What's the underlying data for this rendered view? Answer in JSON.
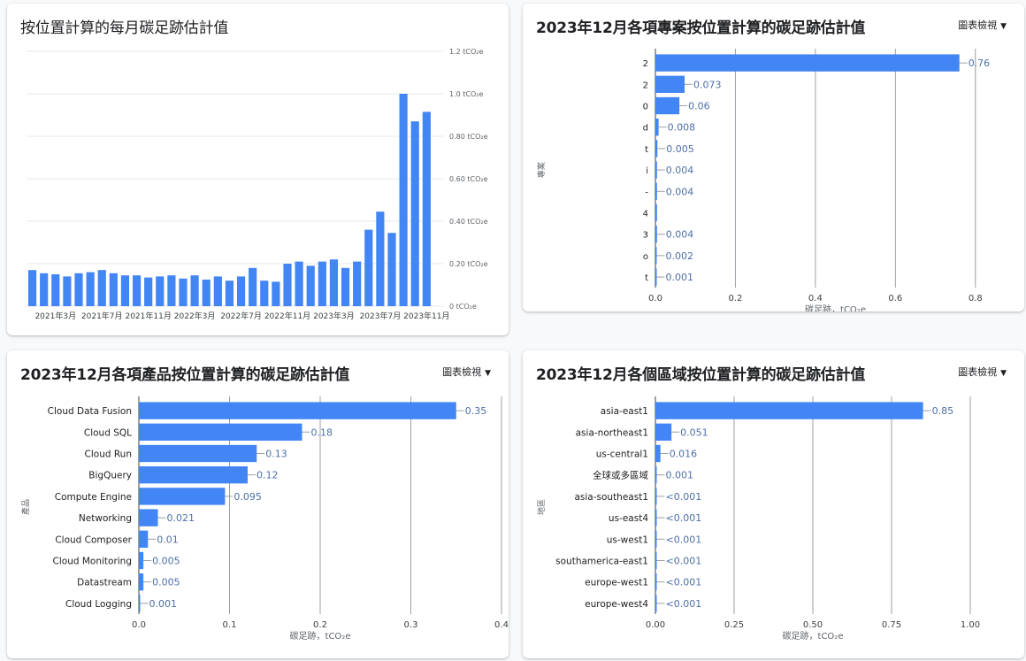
{
  "colors": {
    "bar": "#4285f4",
    "value_label": "#4d6fa8",
    "grid": "#e8eaed",
    "vgrid": "#9aa0a6"
  },
  "monthly_chart": {
    "title": "按位置計算的每月碳足跡估計值",
    "chart_data": {
      "type": "bar",
      "title": "按位置計算的每月碳足跡估計值",
      "categories": [
        "2021年1月",
        "2021年2月",
        "2021年3月",
        "2021年4月",
        "2021年5月",
        "2021年6月",
        "2021年7月",
        "2021年8月",
        "2021年9月",
        "2021年10月",
        "2021年11月",
        "2021年12月",
        "2022年1月",
        "2022年2月",
        "2022年3月",
        "2022年4月",
        "2022年5月",
        "2022年6月",
        "2022年7月",
        "2022年8月",
        "2022年9月",
        "2022年10月",
        "2022年11月",
        "2022年12月",
        "2023年1月",
        "2023年2月",
        "2023年3月",
        "2023年4月",
        "2023年5月",
        "2023年6月",
        "2023年7月",
        "2023年8月",
        "2023年9月",
        "2023年10月",
        "2023年11月",
        "2023年12月"
      ],
      "x_tick_labels": [
        "2021年3月",
        "2021年7月",
        "2021年11月",
        "2022年3月",
        "2022年7月",
        "2022年11月",
        "2023年3月",
        "2023年7月",
        "2023年11月"
      ],
      "x_tick_indices": [
        2,
        6,
        10,
        14,
        18,
        22,
        26,
        30,
        34
      ],
      "values": [
        0.17,
        0.155,
        0.15,
        0.14,
        0.155,
        0.16,
        0.17,
        0.155,
        0.145,
        0.145,
        0.135,
        0.14,
        0.145,
        0.13,
        0.145,
        0.125,
        0.14,
        0.12,
        0.14,
        0.18,
        0.12,
        0.115,
        0.2,
        0.21,
        0.19,
        0.21,
        0.22,
        0.18,
        0.21,
        0.36,
        0.445,
        0.345,
        1.0,
        0.87,
        0.915,
        0
      ],
      "ylim": [
        0,
        1.2
      ],
      "y_ticks": [
        0,
        0.2,
        0.4,
        0.6,
        0.8,
        1.0,
        1.2
      ],
      "y_tick_labels": [
        "0 tCO₂e",
        "0.20 tCO₂e",
        "0.40 tCO₂e",
        "0.60 tCO₂e",
        "0.80 tCO₂e",
        "1.0 tCO₂e",
        "1.2 tCO₂e"
      ],
      "grid": true
    }
  },
  "project_chart": {
    "title": "2023年12月各項專案按位置計算的碳足跡估計值",
    "view_label": "圖表檢視",
    "chart_data": {
      "type": "bar",
      "orientation": "horizontal",
      "categories": [
        "2",
        "2",
        "0",
        "d",
        "t",
        "i",
        "-",
        "4",
        "3",
        "o",
        "t"
      ],
      "values": [
        0.76,
        0.073,
        0.06,
        0.008,
        0.005,
        0.004,
        0.004,
        0.004,
        0.004,
        0.002,
        0.001
      ],
      "value_labels": [
        "0.76",
        "0.073",
        "0.06",
        "0.008",
        "0.005",
        "0.004",
        "0.004",
        "",
        "0.004",
        "0.002",
        "0.001"
      ],
      "xlim": [
        0,
        0.9
      ],
      "x_ticks": [
        0,
        0.2,
        0.4,
        0.6,
        0.8
      ],
      "x_tick_labels": [
        "0.0",
        "0.2",
        "0.4",
        "0.6",
        "0.8"
      ],
      "xlabel": "碳足跡，tCO₂e",
      "ylabel": "專案"
    }
  },
  "product_chart": {
    "title": "2023年12月各項產品按位置計算的碳足跡估計值",
    "view_label": "圖表檢視",
    "chart_data": {
      "type": "bar",
      "orientation": "horizontal",
      "categories": [
        "Cloud Data Fusion",
        "Cloud SQL",
        "Cloud Run",
        "BigQuery",
        "Compute Engine",
        "Networking",
        "Cloud Composer",
        "Cloud Monitoring",
        "Datastream",
        "Cloud Logging"
      ],
      "values": [
        0.35,
        0.18,
        0.13,
        0.12,
        0.095,
        0.021,
        0.01,
        0.005,
        0.005,
        0.001
      ],
      "value_labels": [
        "0.35",
        "0.18",
        "0.13",
        "0.12",
        "0.095",
        "0.021",
        "0.01",
        "0.005",
        "0.005",
        "0.001"
      ],
      "xlim": [
        0,
        0.4
      ],
      "x_ticks": [
        0,
        0.1,
        0.2,
        0.3,
        0.4
      ],
      "x_tick_labels": [
        "0.0",
        "0.1",
        "0.2",
        "0.3",
        "0.4"
      ],
      "xlabel": "碳足跡，tCO₂e",
      "ylabel": "產品"
    }
  },
  "region_chart": {
    "title": "2023年12月各個區域按位置計算的碳足跡估計值",
    "view_label": "圖表檢視",
    "chart_data": {
      "type": "bar",
      "orientation": "horizontal",
      "categories": [
        "asia-east1",
        "asia-northeast1",
        "us-central1",
        "全球或多區域",
        "asia-southeast1",
        "us-east4",
        "us-west1",
        "southamerica-east1",
        "europe-west1",
        "europe-west4"
      ],
      "values": [
        0.85,
        0.051,
        0.016,
        0.001,
        0.0005,
        0.0005,
        0.0005,
        0.0005,
        0.0005,
        0.0005
      ],
      "value_labels": [
        "0.85",
        "0.051",
        "0.016",
        "0.001",
        "<0.001",
        "<0.001",
        "<0.001",
        "<0.001",
        "<0.001",
        "<0.001"
      ],
      "xlim": [
        0,
        1.0
      ],
      "x_ticks": [
        0,
        0.25,
        0.5,
        0.75,
        1.0
      ],
      "x_tick_labels": [
        "0.00",
        "0.25",
        "0.50",
        "0.75",
        "1.00"
      ],
      "xlabel": "碳足跡，tCO₂e",
      "ylabel": "地區"
    }
  }
}
